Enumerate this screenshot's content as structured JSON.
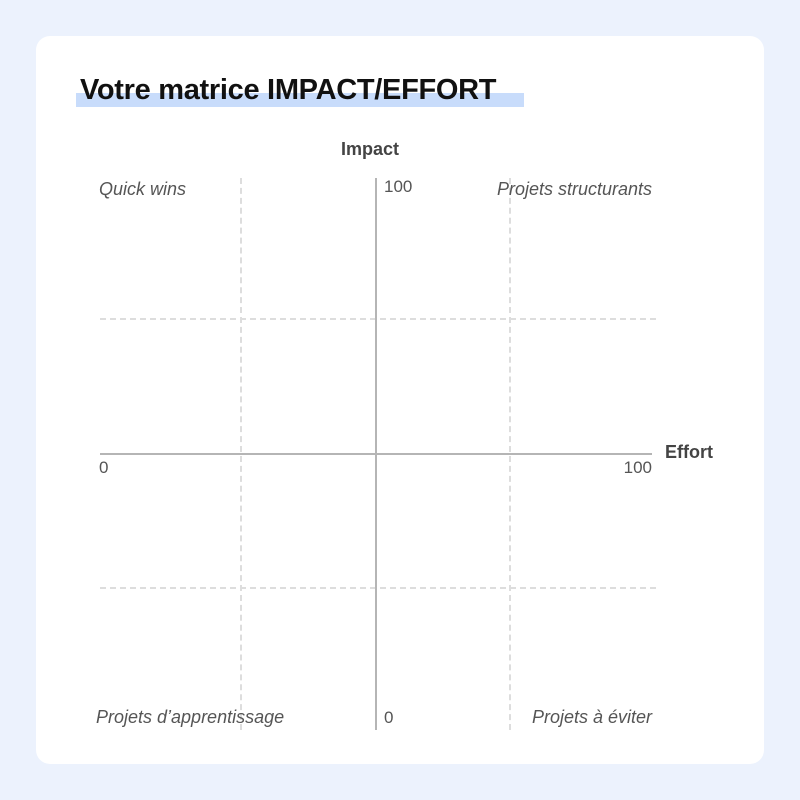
{
  "title": "Votre matrice IMPACT/EFFORT",
  "axes": {
    "y_label": "Impact",
    "x_label": "Effort",
    "y_max": "100",
    "y_min": "0",
    "x_min": "0",
    "x_max": "100"
  },
  "quadrants": {
    "top_left": "Quick wins",
    "top_right": "Projets structurants",
    "bottom_left": "Projets d’apprentissage",
    "bottom_right": "Projets à éviter"
  },
  "colors": {
    "background": "#ecf2fd",
    "card": "#ffffff",
    "title_highlight": "#c8dcfb",
    "axis": "#b5b5b5",
    "grid": "#dddddd"
  }
}
